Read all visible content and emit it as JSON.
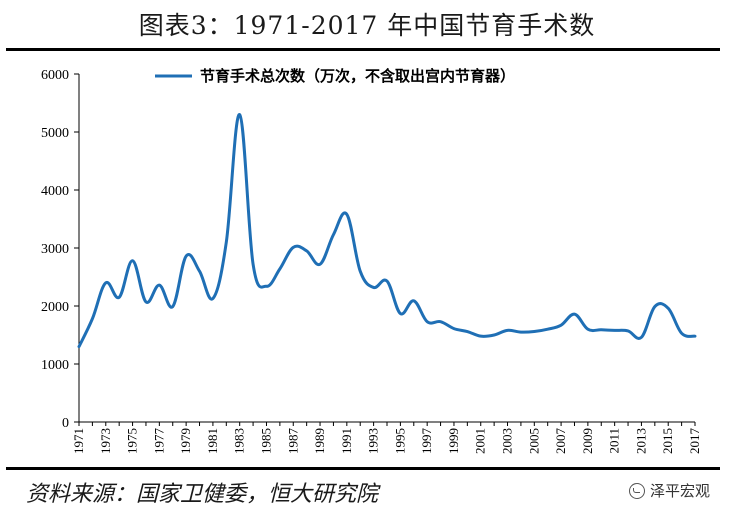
{
  "title": "图表3：1971-2017 年中国节育手术数",
  "source": "资料来源：国家卫健委，恒大研究院",
  "watermark": "泽平宏观",
  "chart_data": {
    "type": "line",
    "title": "图表3：1971-2017 年中国节育手术数",
    "xlabel": "",
    "ylabel": "",
    "ylim": [
      0,
      6000
    ],
    "yticks": [
      0,
      1000,
      2000,
      3000,
      4000,
      5000,
      6000
    ],
    "xticks": [
      "1971",
      "1973",
      "1975",
      "1977",
      "1979",
      "1981",
      "1983",
      "1985",
      "1987",
      "1989",
      "1991",
      "1993",
      "1995",
      "1997",
      "1999",
      "2001",
      "2003",
      "2005",
      "2007",
      "2009",
      "2011",
      "2013",
      "2015",
      "2017"
    ],
    "legend_position": "top-right",
    "grid": false,
    "x": [
      1971,
      1972,
      1973,
      1974,
      1975,
      1976,
      1977,
      1978,
      1979,
      1980,
      1981,
      1982,
      1983,
      1984,
      1985,
      1986,
      1987,
      1988,
      1989,
      1990,
      1991,
      1992,
      1993,
      1994,
      1995,
      1996,
      1997,
      1998,
      1999,
      2000,
      2001,
      2002,
      2003,
      2004,
      2005,
      2006,
      2007,
      2008,
      2009,
      2010,
      2011,
      2012,
      2013,
      2014,
      2015,
      2016,
      2017
    ],
    "series": [
      {
        "name": "节育手术总次数（万次，不含取出宫内节育器）",
        "color": "#1f6fb5",
        "values": [
          1300,
          1780,
          2400,
          2150,
          2780,
          2070,
          2360,
          1990,
          2860,
          2600,
          2130,
          3100,
          5300,
          2720,
          2340,
          2640,
          3010,
          2950,
          2720,
          3230,
          3580,
          2600,
          2320,
          2430,
          1870,
          2090,
          1730,
          1730,
          1610,
          1560,
          1480,
          1500,
          1580,
          1550,
          1560,
          1600,
          1670,
          1860,
          1600,
          1590,
          1580,
          1570,
          1460,
          1990,
          1960,
          1530,
          1480
        ]
      }
    ]
  }
}
